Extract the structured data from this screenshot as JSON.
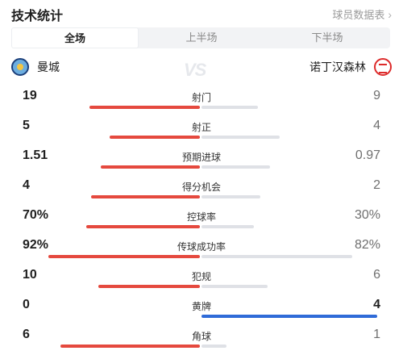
{
  "header": {
    "title": "技术统计",
    "link_label": "球员数据表"
  },
  "tabs": [
    {
      "label": "全场",
      "active": true
    },
    {
      "label": "上半场",
      "active": false
    },
    {
      "label": "下半场",
      "active": false
    }
  ],
  "teams": {
    "home": {
      "name": "曼城",
      "icon": "man-city-crest-icon"
    },
    "away": {
      "name": "诺丁汉森林",
      "icon": "forest-crest-icon"
    },
    "vs_text": "VS"
  },
  "colors": {
    "home": "#e5493e",
    "away": "#dfe1e6",
    "away_lead": "#2f6bd8"
  },
  "stats": [
    {
      "label": "射门",
      "home": "19",
      "away": "9",
      "home_share": 0.679,
      "away_share": 0.321,
      "away_lead": false
    },
    {
      "label": "射正",
      "home": "5",
      "away": "4",
      "home_share": 0.556,
      "away_share": 0.444,
      "away_lead": false
    },
    {
      "label": "预期进球",
      "home": "1.51",
      "away": "0.97",
      "home_share": 0.609,
      "away_share": 0.391,
      "away_lead": false
    },
    {
      "label": "得分机会",
      "home": "4",
      "away": "2",
      "home_share": 0.667,
      "away_share": 0.333,
      "away_lead": false
    },
    {
      "label": "控球率",
      "home": "70%",
      "away": "30%",
      "home_share": 0.7,
      "away_share": 0.3,
      "away_lead": false
    },
    {
      "label": "传球成功率",
      "home": "92%",
      "away": "82%",
      "home_share": 0.93,
      "away_share": 0.86,
      "away_lead": false
    },
    {
      "label": "犯规",
      "home": "10",
      "away": "6",
      "home_share": 0.625,
      "away_share": 0.375,
      "away_lead": false
    },
    {
      "label": "黄牌",
      "home": "0",
      "away": "4",
      "home_share": 0.0,
      "away_share": 1.0,
      "away_lead": true
    },
    {
      "label": "角球",
      "home": "6",
      "away": "1",
      "home_share": 0.857,
      "away_share": 0.143,
      "away_lead": false
    }
  ]
}
